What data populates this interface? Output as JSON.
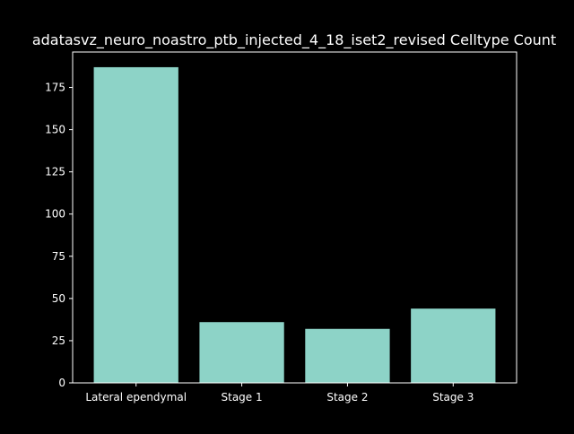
{
  "chart_data": {
    "type": "bar",
    "title": "adatasvz_neuro_noastro_ptb_injected_4_18_iset2_revised Celltype Count",
    "xlabel": "",
    "ylabel": "",
    "categories": [
      "Lateral ependymal",
      "Stage 1",
      "Stage 2",
      "Stage 3"
    ],
    "values": [
      187,
      36,
      32,
      44
    ],
    "ylim": [
      0,
      196
    ],
    "yticks": [
      0,
      25,
      50,
      75,
      100,
      125,
      150,
      175
    ],
    "bar_color": "#8dd3c7",
    "background": "#000000",
    "axis_color": "#ffffff",
    "text_color": "#ffffff",
    "grid": false,
    "legend": "none"
  }
}
